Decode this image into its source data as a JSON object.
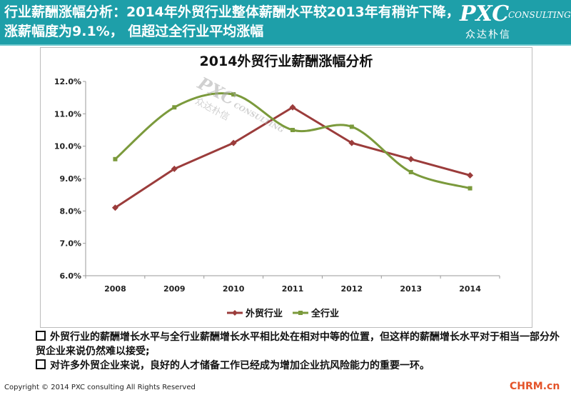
{
  "header": {
    "title": "行业薪酬涨幅分析：2014年外贸行业整体薪酬水平较2013年有稍许下降，涨薪幅度为9.1%， 但超过全行业平均涨幅",
    "bg_color": "#1e9fa9"
  },
  "logo": {
    "main": "PXC",
    "sub": "CONSULTING",
    "cn": "众达朴信"
  },
  "watermark": {
    "main": "PXC",
    "sub": "CONSULTING",
    "cn": "众达朴信"
  },
  "chart_data": {
    "type": "line",
    "title": "2014外贸行业薪酬涨幅分析",
    "categories": [
      "2008",
      "2009",
      "2010",
      "2011",
      "2012",
      "2013",
      "2014"
    ],
    "series": [
      {
        "name": "外贸行业",
        "values": [
          8.1,
          9.3,
          10.1,
          11.2,
          10.1,
          9.6,
          9.1
        ],
        "color": "#9b3c3b",
        "smooth": false
      },
      {
        "name": "全行业",
        "values": [
          9.6,
          11.2,
          11.6,
          10.5,
          10.6,
          9.2,
          8.7
        ],
        "color": "#7b9a3c",
        "smooth": true
      }
    ],
    "ylim": [
      6.0,
      12.0
    ],
    "yticks": [
      "6.0%",
      "7.0%",
      "8.0%",
      "9.0%",
      "10.0%",
      "11.0%",
      "12.0%"
    ],
    "grid": false,
    "legend": "bottom",
    "xlabel": "",
    "ylabel": ""
  },
  "notes": [
    "外贸行业的薪酬增长水平与全行业薪酬增长水平相比处在相对中等的位置，但这样的薪酬增长水平对于相当一部分外贸企业来说仍然难以接受;",
    "对许多外贸企业来说，良好的人才储备工作已经成为增加企业抗风险能力的重要一环。"
  ],
  "footer": {
    "copyright": "Copyright © 2014  PXC consulting All Rights Reserved",
    "site": "CHRM.cn"
  }
}
